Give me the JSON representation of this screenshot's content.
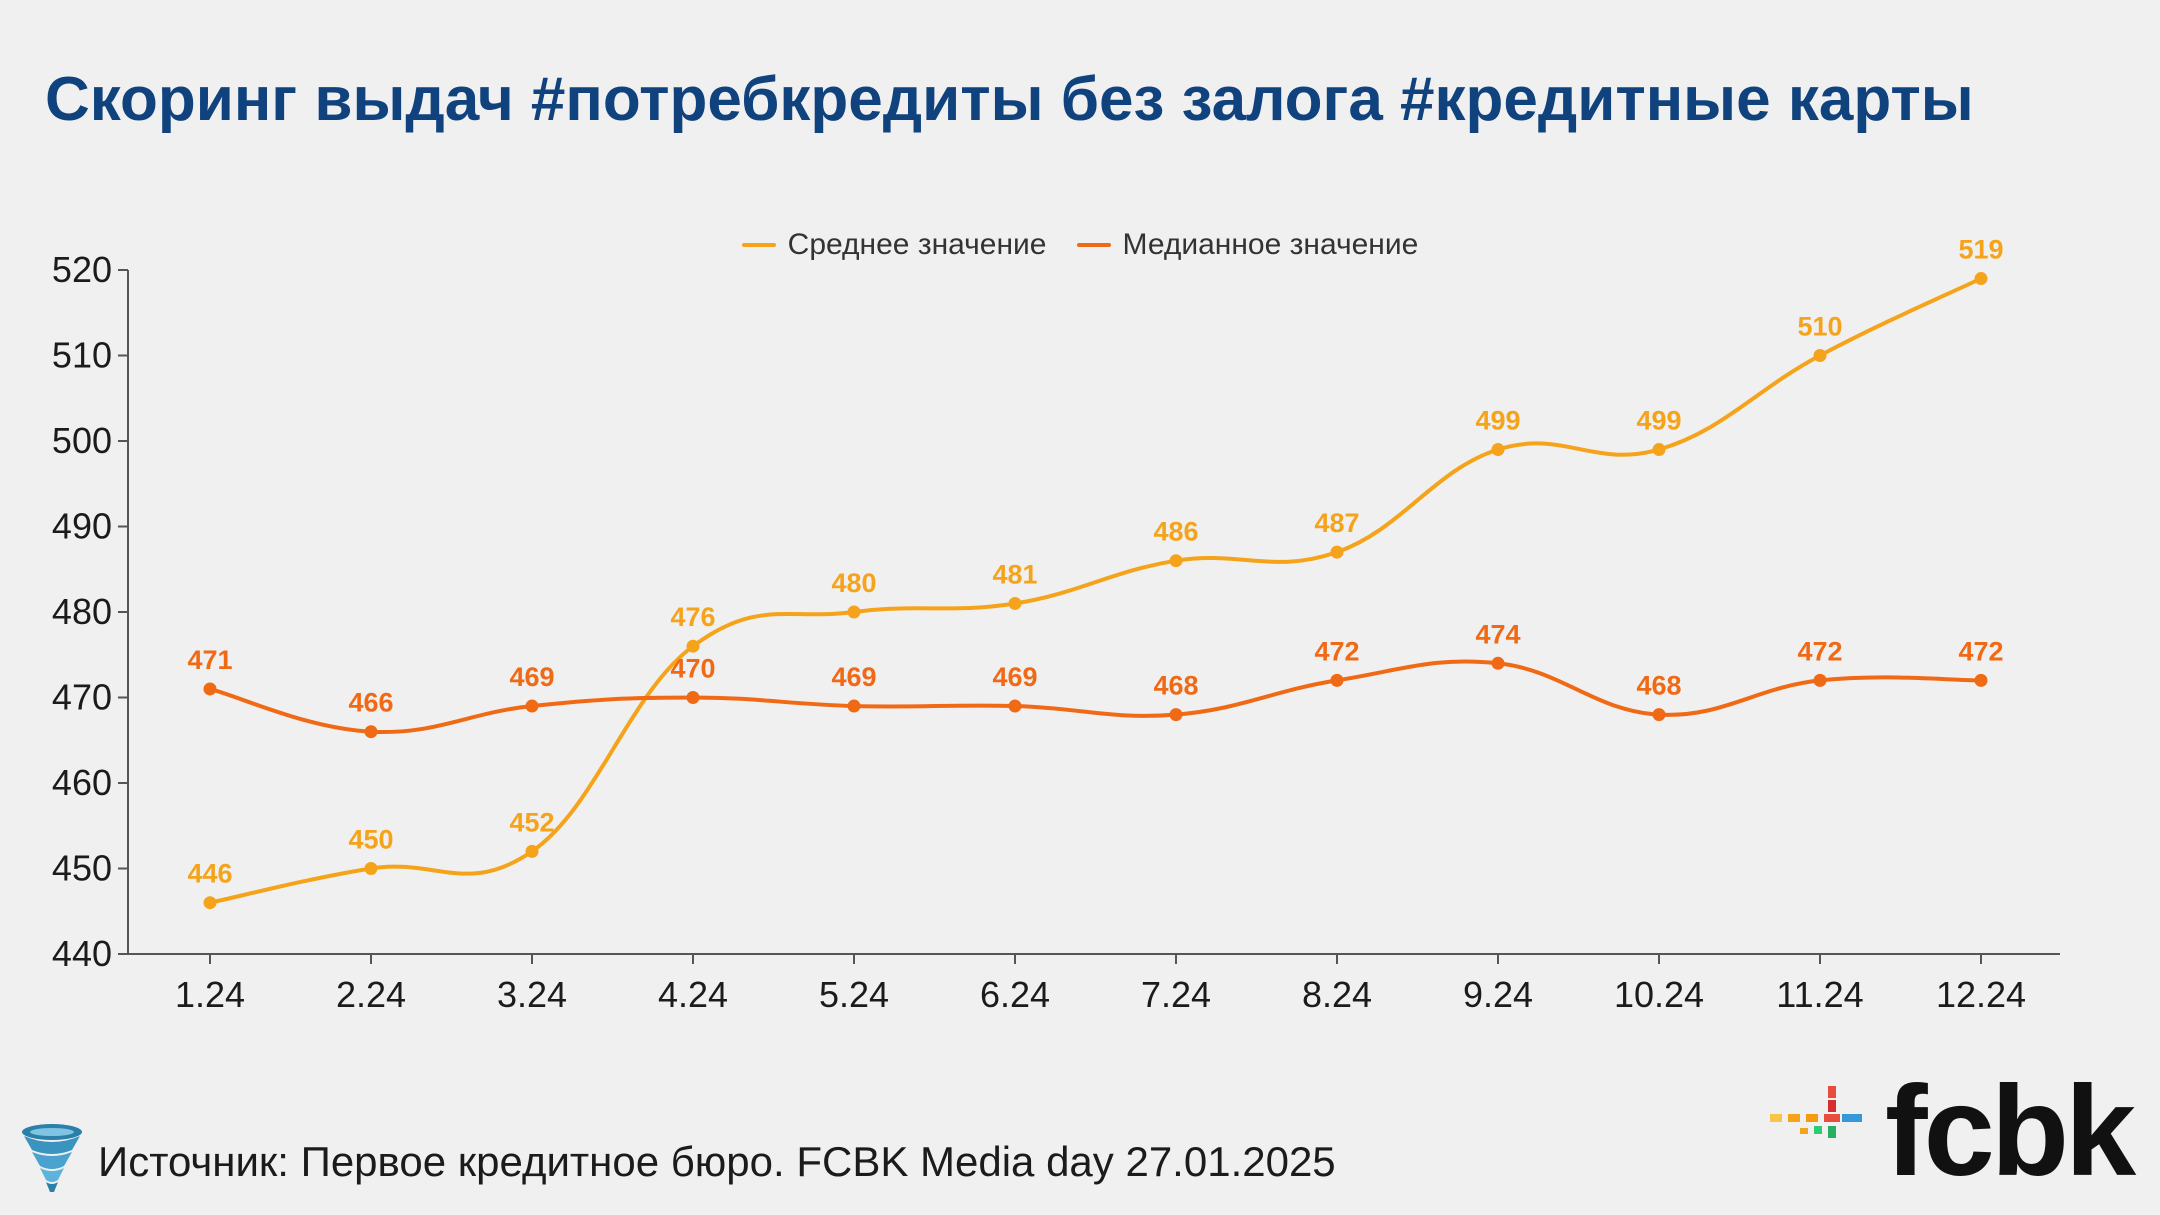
{
  "title": "Скоринг выдач #потребкредиты без залога #кредитные карты",
  "source": "Источник: Первое кредитное бюро. FCBK Media day 27.01.2025",
  "logo_text": "fcbk",
  "colors": {
    "mean": "#f5a31a",
    "median": "#f06a16",
    "title": "#10427d",
    "axis": "#555555"
  },
  "chart_data": {
    "type": "line",
    "title": "",
    "xlabel": "",
    "ylabel": "",
    "categories": [
      "1.24",
      "2.24",
      "3.24",
      "4.24",
      "5.24",
      "6.24",
      "7.24",
      "8.24",
      "9.24",
      "10.24",
      "11.24",
      "12.24"
    ],
    "ylim": [
      440,
      520
    ],
    "yticks": [
      440,
      450,
      460,
      470,
      480,
      490,
      500,
      510,
      520
    ],
    "grid": false,
    "legend": "top-center",
    "series": [
      {
        "name": "Среднее значение",
        "color": "#f5a31a",
        "values": [
          446,
          450,
          452,
          476,
          480,
          481,
          486,
          487,
          499,
          499,
          510,
          519
        ]
      },
      {
        "name": "Медианное значение",
        "color": "#f06a16",
        "values": [
          471,
          466,
          469,
          470,
          469,
          469,
          468,
          472,
          474,
          468,
          472,
          472
        ]
      }
    ]
  }
}
